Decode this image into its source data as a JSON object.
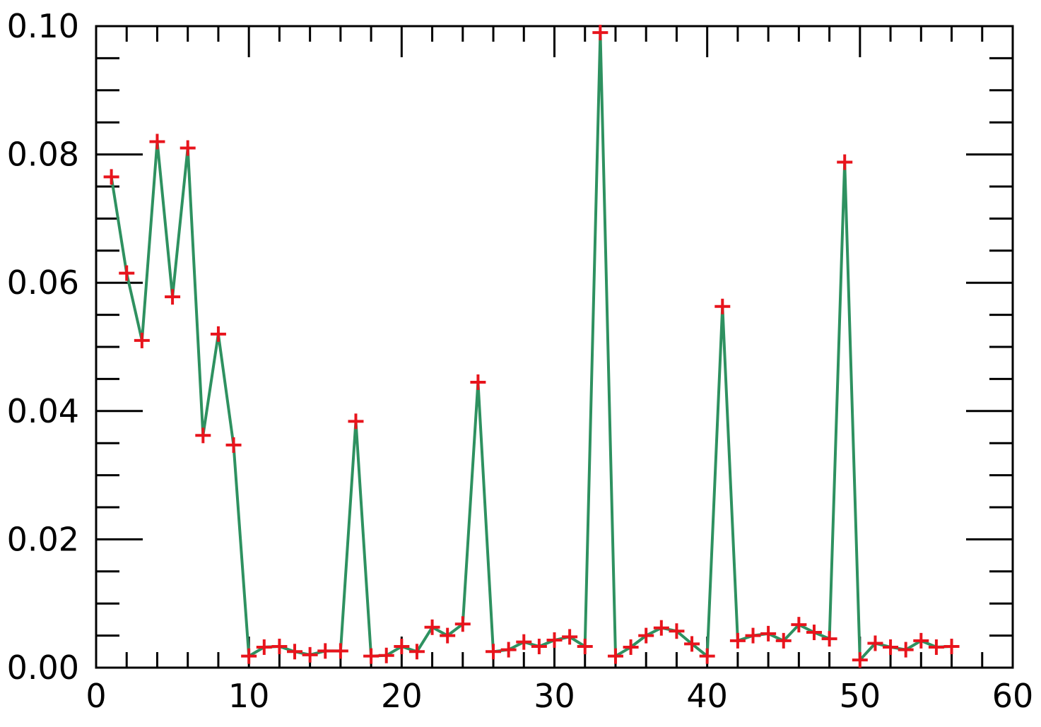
{
  "chart_data": {
    "type": "line",
    "title": "",
    "xlabel": "",
    "ylabel": "",
    "xlim": [
      0,
      60
    ],
    "ylim": [
      0,
      0.1
    ],
    "grid": false,
    "x_ticks": [
      "0",
      "10",
      "20",
      "30",
      "40",
      "50",
      "60"
    ],
    "y_ticks": [
      "0.00",
      "0.02",
      "0.04",
      "0.06",
      "0.08",
      "0.10"
    ],
    "line_color": "#2e9160",
    "marker_color": "#e8141c",
    "marker": "plus",
    "series": [
      {
        "x": [
          1,
          2,
          3,
          4,
          5,
          6,
          7,
          8,
          9,
          10,
          11,
          12,
          13,
          14,
          15,
          16,
          17,
          18,
          19,
          20,
          21,
          22,
          23,
          24,
          25,
          26,
          27,
          28,
          29,
          30,
          31,
          32,
          33,
          34,
          35,
          36,
          37,
          38,
          39,
          40,
          41,
          42,
          43,
          44,
          45,
          46,
          47,
          48,
          49,
          50,
          51,
          52,
          53,
          54,
          55,
          56
        ],
        "values": [
          0.0765,
          0.0615,
          0.051,
          0.082,
          0.0578,
          0.081,
          0.0362,
          0.052,
          0.0347,
          0.0018,
          0.0032,
          0.0033,
          0.0025,
          0.002,
          0.0026,
          0.0026,
          0.0384,
          0.0018,
          0.0019,
          0.0033,
          0.0025,
          0.0063,
          0.005,
          0.0068,
          0.0445,
          0.0025,
          0.0028,
          0.004,
          0.0033,
          0.0043,
          0.0048,
          0.0033,
          0.099,
          0.0018,
          0.0032,
          0.005,
          0.0062,
          0.0057,
          0.0037,
          0.0018,
          0.0563,
          0.0042,
          0.005,
          0.0053,
          0.0042,
          0.0067,
          0.0055,
          0.0045,
          0.0788,
          0.0012,
          0.0038,
          0.0032,
          0.0028,
          0.0042,
          0.0032,
          0.0033
        ]
      }
    ]
  }
}
